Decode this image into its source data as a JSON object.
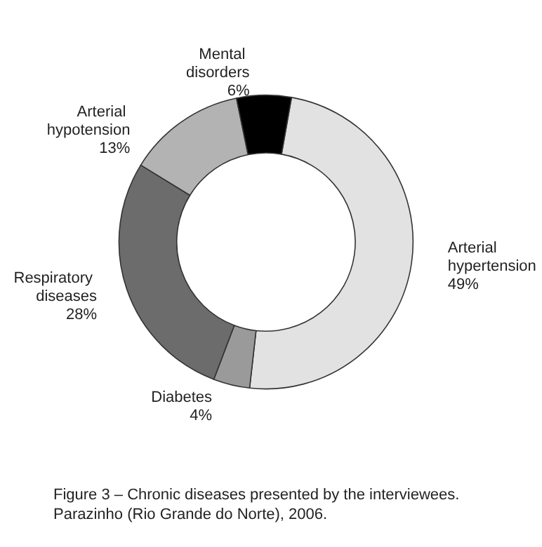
{
  "chart_data": {
    "type": "donut",
    "categories": [
      "Arterial hypertension",
      "Diabetes",
      "Respiratory diseases",
      "Arterial hypotension",
      "Mental disorders"
    ],
    "values": [
      49,
      4,
      28,
      13,
      6
    ],
    "value_labels": [
      "49%",
      "4%",
      "28%",
      "13%",
      "6%"
    ],
    "colors": [
      "#e2e2e2",
      "#9a9a9a",
      "#6c6c6c",
      "#b3b3b3",
      "#000000"
    ],
    "annotations": [
      "Figure 3 – Chronic diseases presented by the interviewees. Parazinho (Rio Grande do Norte), 2006."
    ]
  }
}
